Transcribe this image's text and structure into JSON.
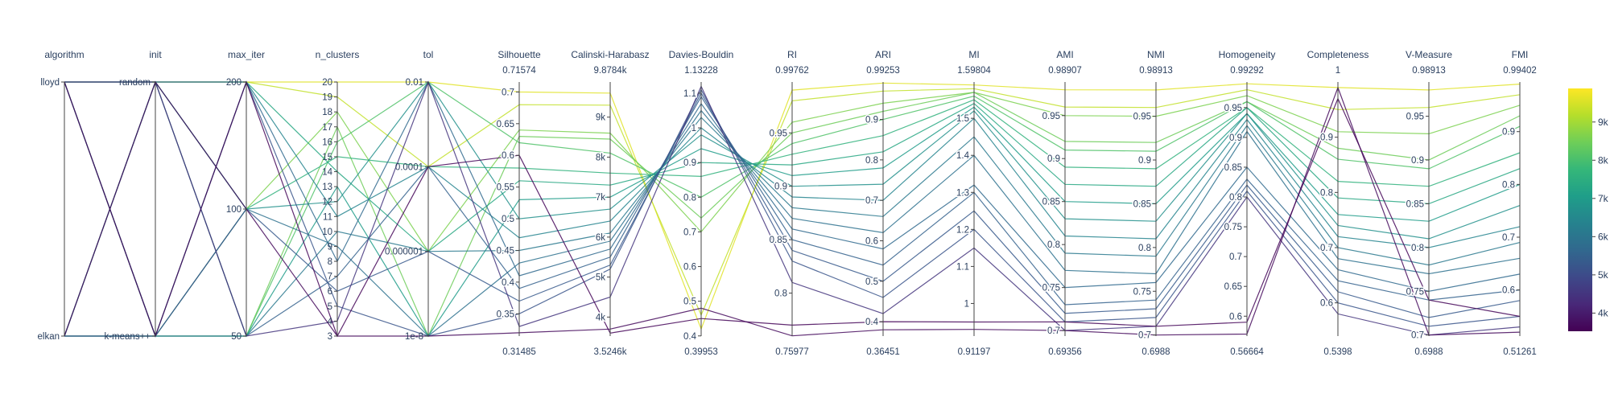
{
  "chart_data": {
    "type": "parallel_coordinates",
    "color_scale": "viridis",
    "colorbar": {
      "min": 3524.6,
      "max": 9878.4,
      "ticks": [
        {
          "v": 4000,
          "label": "4k"
        },
        {
          "v": 5000,
          "label": "5k"
        },
        {
          "v": 6000,
          "label": "6k"
        },
        {
          "v": 7000,
          "label": "7k"
        },
        {
          "v": 8000,
          "label": "8k"
        },
        {
          "v": 9000,
          "label": "9k"
        }
      ]
    },
    "categorical_dimensions": [
      {
        "name": "algorithm",
        "ticks": [
          "lloyd",
          "elkan"
        ]
      },
      {
        "name": "init",
        "ticks": [
          "random",
          "k-means++"
        ]
      },
      {
        "name": "max_iter",
        "ticks": [
          "200",
          "100",
          "50"
        ]
      },
      {
        "name": "n_clusters",
        "ticks": [
          "20",
          "19",
          "18",
          "17",
          "16",
          "15",
          "14",
          "13",
          "12",
          "11",
          "10",
          "9",
          "8",
          "7",
          "6",
          "5",
          "4",
          "3"
        ]
      },
      {
        "name": "tol",
        "ticks": [
          "0.01",
          "0.0001",
          "0.000001",
          "1e-8"
        ]
      }
    ],
    "numeric_dimensions": [
      {
        "name": "Silhouette",
        "max_label": "0.71574",
        "min_label": "0.31485",
        "min": 0.31485,
        "max": 0.71574,
        "ticks": [
          {
            "v": 0.35,
            "label": "0.35"
          },
          {
            "v": 0.4,
            "label": "0.4"
          },
          {
            "v": 0.45,
            "label": "0.45"
          },
          {
            "v": 0.5,
            "label": "0.5"
          },
          {
            "v": 0.55,
            "label": "0.55"
          },
          {
            "v": 0.6,
            "label": "0.6"
          },
          {
            "v": 0.65,
            "label": "0.65"
          },
          {
            "v": 0.7,
            "label": "0.7"
          }
        ]
      },
      {
        "name": "Calinski-Harabasz",
        "max_label": "9.8784k",
        "min_label": "3.5246k",
        "min": 3524.6,
        "max": 9878.4,
        "ticks": [
          {
            "v": 4000,
            "label": "4k"
          },
          {
            "v": 5000,
            "label": "5k"
          },
          {
            "v": 6000,
            "label": "6k"
          },
          {
            "v": 7000,
            "label": "7k"
          },
          {
            "v": 8000,
            "label": "8k"
          },
          {
            "v": 9000,
            "label": "9k"
          }
        ]
      },
      {
        "name": "Davies-Bouldin",
        "max_label": "1.13228",
        "min_label": "0.39953",
        "min": 0.39953,
        "max": 1.13228,
        "ticks": [
          {
            "v": 0.4,
            "label": "0.4"
          },
          {
            "v": 0.5,
            "label": "0.5"
          },
          {
            "v": 0.6,
            "label": "0.6"
          },
          {
            "v": 0.7,
            "label": "0.7"
          },
          {
            "v": 0.8,
            "label": "0.8"
          },
          {
            "v": 0.9,
            "label": "0.9"
          },
          {
            "v": 1.0,
            "label": "1"
          },
          {
            "v": 1.1,
            "label": "1.1"
          }
        ]
      },
      {
        "name": "RI",
        "max_label": "0.99762",
        "min_label": "0.75977",
        "min": 0.75977,
        "max": 0.99762,
        "ticks": [
          {
            "v": 0.8,
            "label": "0.8"
          },
          {
            "v": 0.85,
            "label": "0.85"
          },
          {
            "v": 0.9,
            "label": "0.9"
          },
          {
            "v": 0.95,
            "label": "0.95"
          }
        ]
      },
      {
        "name": "ARI",
        "max_label": "0.99253",
        "min_label": "0.36451",
        "min": 0.36451,
        "max": 0.99253,
        "ticks": [
          {
            "v": 0.4,
            "label": "0.4"
          },
          {
            "v": 0.5,
            "label": "0.5"
          },
          {
            "v": 0.6,
            "label": "0.6"
          },
          {
            "v": 0.7,
            "label": "0.7"
          },
          {
            "v": 0.8,
            "label": "0.8"
          },
          {
            "v": 0.9,
            "label": "0.9"
          }
        ]
      },
      {
        "name": "MI",
        "max_label": "1.59804",
        "min_label": "0.91197",
        "min": 0.91197,
        "max": 1.59804,
        "ticks": [
          {
            "v": 1.0,
            "label": "1"
          },
          {
            "v": 1.1,
            "label": "1.1"
          },
          {
            "v": 1.2,
            "label": "1.2"
          },
          {
            "v": 1.3,
            "label": "1.3"
          },
          {
            "v": 1.4,
            "label": "1.4"
          },
          {
            "v": 1.5,
            "label": "1.5"
          }
        ]
      },
      {
        "name": "AMI",
        "max_label": "0.98907",
        "min_label": "0.69356",
        "min": 0.69356,
        "max": 0.98907,
        "ticks": [
          {
            "v": 0.7,
            "label": "0.7"
          },
          {
            "v": 0.75,
            "label": "0.75"
          },
          {
            "v": 0.8,
            "label": "0.8"
          },
          {
            "v": 0.85,
            "label": "0.85"
          },
          {
            "v": 0.9,
            "label": "0.9"
          },
          {
            "v": 0.95,
            "label": "0.95"
          }
        ]
      },
      {
        "name": "NMI",
        "max_label": "0.98913",
        "min_label": "0.6988",
        "min": 0.6988,
        "max": 0.98913,
        "ticks": [
          {
            "v": 0.7,
            "label": "0.7"
          },
          {
            "v": 0.75,
            "label": "0.75"
          },
          {
            "v": 0.8,
            "label": "0.8"
          },
          {
            "v": 0.85,
            "label": "0.85"
          },
          {
            "v": 0.9,
            "label": "0.9"
          },
          {
            "v": 0.95,
            "label": "0.95"
          }
        ]
      },
      {
        "name": "Homogeneity",
        "max_label": "0.99292",
        "min_label": "0.56664",
        "min": 0.56664,
        "max": 0.99292,
        "ticks": [
          {
            "v": 0.6,
            "label": "0.6"
          },
          {
            "v": 0.65,
            "label": "0.65"
          },
          {
            "v": 0.7,
            "label": "0.7"
          },
          {
            "v": 0.75,
            "label": "0.75"
          },
          {
            "v": 0.8,
            "label": "0.8"
          },
          {
            "v": 0.85,
            "label": "0.85"
          },
          {
            "v": 0.9,
            "label": "0.9"
          },
          {
            "v": 0.95,
            "label": "0.95"
          }
        ]
      },
      {
        "name": "Completeness",
        "max_label": "1",
        "min_label": "0.5398",
        "min": 0.5398,
        "max": 1.0,
        "ticks": [
          {
            "v": 0.6,
            "label": "0.6"
          },
          {
            "v": 0.7,
            "label": "0.7"
          },
          {
            "v": 0.8,
            "label": "0.8"
          },
          {
            "v": 0.9,
            "label": "0.9"
          }
        ]
      },
      {
        "name": "V-Measure",
        "max_label": "0.98913",
        "min_label": "0.6988",
        "min": 0.6988,
        "max": 0.98913,
        "ticks": [
          {
            "v": 0.7,
            "label": "0.7"
          },
          {
            "v": 0.75,
            "label": "0.75"
          },
          {
            "v": 0.8,
            "label": "0.8"
          },
          {
            "v": 0.85,
            "label": "0.85"
          },
          {
            "v": 0.9,
            "label": "0.9"
          },
          {
            "v": 0.95,
            "label": "0.95"
          }
        ]
      },
      {
        "name": "FMI",
        "max_label": "0.99402",
        "min_label": "0.51261",
        "min": 0.51261,
        "max": 0.99402,
        "ticks": [
          {
            "v": 0.6,
            "label": "0.6"
          },
          {
            "v": 0.7,
            "label": "0.7"
          },
          {
            "v": 0.8,
            "label": "0.8"
          },
          {
            "v": 0.9,
            "label": "0.9"
          }
        ]
      }
    ],
    "lines": [
      {
        "algorithm": "lloyd",
        "init": "random",
        "max_iter": "200",
        "n_clusters": "20",
        "tol": "0.01",
        "Silhouette": 0.7,
        "Calinski-Harabasz": 9600,
        "Davies-Bouldin": 0.42,
        "RI": 0.99,
        "ARI": 0.99,
        "MI": 1.59,
        "AMI": 0.98,
        "NMI": 0.98,
        "Homogeneity": 0.99,
        "Completeness": 0.99,
        "V-Measure": 0.98,
        "FMI": 0.99
      },
      {
        "algorithm": "elkan",
        "init": "random",
        "max_iter": "200",
        "n_clusters": "19",
        "tol": "0.0001",
        "Silhouette": 0.68,
        "Calinski-Harabasz": 9300,
        "Davies-Bouldin": 0.46,
        "RI": 0.98,
        "ARI": 0.97,
        "MI": 1.58,
        "AMI": 0.96,
        "NMI": 0.96,
        "Homogeneity": 0.98,
        "Completeness": 0.95,
        "V-Measure": 0.96,
        "FMI": 0.97
      },
      {
        "algorithm": "lloyd",
        "init": "k-means++",
        "max_iter": "100",
        "n_clusters": "18",
        "tol": "0.000001",
        "Silhouette": 0.64,
        "Calinski-Harabasz": 8600,
        "Davies-Bouldin": 0.7,
        "RI": 0.96,
        "ARI": 0.94,
        "MI": 1.57,
        "AMI": 0.95,
        "NMI": 0.95,
        "Homogeneity": 0.97,
        "Completeness": 0.91,
        "V-Measure": 0.93,
        "FMI": 0.95
      },
      {
        "algorithm": "elkan",
        "init": "k-means++",
        "max_iter": "50",
        "n_clusters": "17",
        "tol": "1e-8",
        "Silhouette": 0.63,
        "Calinski-Harabasz": 8450,
        "Davies-Bouldin": 0.74,
        "RI": 0.95,
        "ARI": 0.92,
        "MI": 1.57,
        "AMI": 0.92,
        "NMI": 0.92,
        "Homogeneity": 0.96,
        "Completeness": 0.88,
        "V-Measure": 0.9,
        "FMI": 0.93
      },
      {
        "algorithm": "lloyd",
        "init": "random",
        "max_iter": "50",
        "n_clusters": "16",
        "tol": "0.01",
        "Silhouette": 0.62,
        "Calinski-Harabasz": 8100,
        "Davies-Bouldin": 0.8,
        "RI": 0.94,
        "ARI": 0.9,
        "MI": 1.56,
        "AMI": 0.91,
        "NMI": 0.91,
        "Homogeneity": 0.96,
        "Completeness": 0.86,
        "V-Measure": 0.89,
        "FMI": 0.91
      },
      {
        "algorithm": "elkan",
        "init": "random",
        "max_iter": "100",
        "n_clusters": "15",
        "tol": "0.0001",
        "Silhouette": 0.58,
        "Calinski-Harabasz": 7600,
        "Davies-Bouldin": 0.86,
        "RI": 0.93,
        "ARI": 0.86,
        "MI": 1.55,
        "AMI": 0.89,
        "NMI": 0.89,
        "Homogeneity": 0.95,
        "Completeness": 0.82,
        "V-Measure": 0.87,
        "FMI": 0.86
      },
      {
        "algorithm": "lloyd",
        "init": "k-means++",
        "max_iter": "200",
        "n_clusters": "14",
        "tol": "0.000001",
        "Silhouette": 0.56,
        "Calinski-Harabasz": 7300,
        "Davies-Bouldin": 0.9,
        "RI": 0.92,
        "ARI": 0.82,
        "MI": 1.54,
        "AMI": 0.87,
        "NMI": 0.87,
        "Homogeneity": 0.95,
        "Completeness": 0.79,
        "V-Measure": 0.85,
        "FMI": 0.83
      },
      {
        "algorithm": "elkan",
        "init": "k-means++",
        "max_iter": "50",
        "n_clusters": "13",
        "tol": "1e-8",
        "Silhouette": 0.53,
        "Calinski-Harabasz": 7000,
        "Davies-Bouldin": 0.94,
        "RI": 0.91,
        "ARI": 0.78,
        "MI": 1.53,
        "AMI": 0.85,
        "NMI": 0.85,
        "Homogeneity": 0.94,
        "Completeness": 0.76,
        "V-Measure": 0.83,
        "FMI": 0.8
      },
      {
        "algorithm": "lloyd",
        "init": "random",
        "max_iter": "100",
        "n_clusters": "12",
        "tol": "0.01",
        "Silhouette": 0.5,
        "Calinski-Harabasz": 6700,
        "Davies-Bouldin": 0.98,
        "RI": 0.9,
        "ARI": 0.74,
        "MI": 1.52,
        "AMI": 0.83,
        "NMI": 0.83,
        "Homogeneity": 0.94,
        "Completeness": 0.74,
        "V-Measure": 0.81,
        "FMI": 0.76
      },
      {
        "algorithm": "elkan",
        "init": "random",
        "max_iter": "200",
        "n_clusters": "11",
        "tol": "0.0001",
        "Silhouette": 0.47,
        "Calinski-Harabasz": 6400,
        "Davies-Bouldin": 1.0,
        "RI": 0.89,
        "ARI": 0.7,
        "MI": 1.5,
        "AMI": 0.81,
        "NMI": 0.81,
        "Homogeneity": 0.93,
        "Completeness": 0.72,
        "V-Measure": 0.8,
        "FMI": 0.72
      },
      {
        "algorithm": "lloyd",
        "init": "k-means++",
        "max_iter": "50",
        "n_clusters": "10",
        "tol": "0.000001",
        "Silhouette": 0.45,
        "Calinski-Harabasz": 6100,
        "Davies-Bouldin": 1.03,
        "RI": 0.88,
        "ARI": 0.66,
        "MI": 1.45,
        "AMI": 0.79,
        "NMI": 0.79,
        "Homogeneity": 0.92,
        "Completeness": 0.7,
        "V-Measure": 0.78,
        "FMI": 0.69
      },
      {
        "algorithm": "elkan",
        "init": "k-means++",
        "max_iter": "100",
        "n_clusters": "9",
        "tol": "1e-8",
        "Silhouette": 0.43,
        "Calinski-Harabasz": 5900,
        "Davies-Bouldin": 1.05,
        "RI": 0.87,
        "ARI": 0.62,
        "MI": 1.4,
        "AMI": 0.77,
        "NMI": 0.77,
        "Homogeneity": 0.91,
        "Completeness": 0.68,
        "V-Measure": 0.77,
        "FMI": 0.66
      },
      {
        "algorithm": "lloyd",
        "init": "random",
        "max_iter": "200",
        "n_clusters": "8",
        "tol": "0.01",
        "Silhouette": 0.41,
        "Calinski-Harabasz": 5700,
        "Davies-Bouldin": 1.07,
        "RI": 0.86,
        "ARI": 0.58,
        "MI": 1.32,
        "AMI": 0.75,
        "NMI": 0.76,
        "Homogeneity": 0.85,
        "Completeness": 0.66,
        "V-Measure": 0.75,
        "FMI": 0.63
      },
      {
        "algorithm": "elkan",
        "init": "random",
        "max_iter": "50",
        "n_clusters": "7",
        "tol": "0.0001",
        "Silhouette": 0.39,
        "Calinski-Harabasz": 5500,
        "Davies-Bouldin": 1.09,
        "RI": 0.85,
        "ARI": 0.54,
        "MI": 1.3,
        "AMI": 0.73,
        "NMI": 0.74,
        "Homogeneity": 0.83,
        "Completeness": 0.64,
        "V-Measure": 0.74,
        "FMI": 0.6
      },
      {
        "algorithm": "lloyd",
        "init": "k-means++",
        "max_iter": "100",
        "n_clusters": "6",
        "tol": "0.000001",
        "Silhouette": 0.37,
        "Calinski-Harabasz": 5300,
        "Davies-Bouldin": 1.1,
        "RI": 0.84,
        "ARI": 0.5,
        "MI": 1.25,
        "AMI": 0.72,
        "NMI": 0.73,
        "Homogeneity": 0.82,
        "Completeness": 0.62,
        "V-Measure": 0.72,
        "FMI": 0.58
      },
      {
        "algorithm": "elkan",
        "init": "k-means++",
        "max_iter": "200",
        "n_clusters": "5",
        "tol": "1e-8",
        "Silhouette": 0.35,
        "Calinski-Harabasz": 5200,
        "Davies-Bouldin": 1.11,
        "RI": 0.83,
        "ARI": 0.46,
        "MI": 1.2,
        "AMI": 0.71,
        "NMI": 0.72,
        "Homogeneity": 0.81,
        "Completeness": 0.6,
        "V-Measure": 0.71,
        "FMI": 0.55
      },
      {
        "algorithm": "lloyd",
        "init": "random",
        "max_iter": "50",
        "n_clusters": "4",
        "tol": "0.01",
        "Silhouette": 0.33,
        "Calinski-Harabasz": 4500,
        "Davies-Bouldin": 1.12,
        "RI": 0.81,
        "ARI": 0.42,
        "MI": 1.15,
        "AMI": 0.7,
        "NMI": 0.71,
        "Homogeneity": 0.8,
        "Completeness": 0.58,
        "V-Measure": 0.7,
        "FMI": 0.53
      },
      {
        "algorithm": "elkan",
        "init": "random",
        "max_iter": "100",
        "n_clusters": "3",
        "tol": "1e-8",
        "Silhouette": 0.32,
        "Calinski-Harabasz": 3700,
        "Davies-Bouldin": 0.48,
        "RI": 0.76,
        "ARI": 0.38,
        "MI": 0.93,
        "AMI": 0.7,
        "NMI": 0.7,
        "Homogeneity": 0.57,
        "Completeness": 0.99,
        "V-Measure": 0.7,
        "FMI": 0.52
      },
      {
        "algorithm": "lloyd",
        "init": "k-means++",
        "max_iter": "200",
        "n_clusters": "3",
        "tol": "0.0001",
        "Silhouette": 0.6,
        "Calinski-Harabasz": 3600,
        "Davies-Bouldin": 0.45,
        "RI": 0.77,
        "ARI": 0.4,
        "MI": 0.95,
        "AMI": 0.71,
        "NMI": 0.71,
        "Homogeneity": 0.59,
        "Completeness": 0.97,
        "V-Measure": 0.74,
        "FMI": 0.55
      }
    ]
  }
}
